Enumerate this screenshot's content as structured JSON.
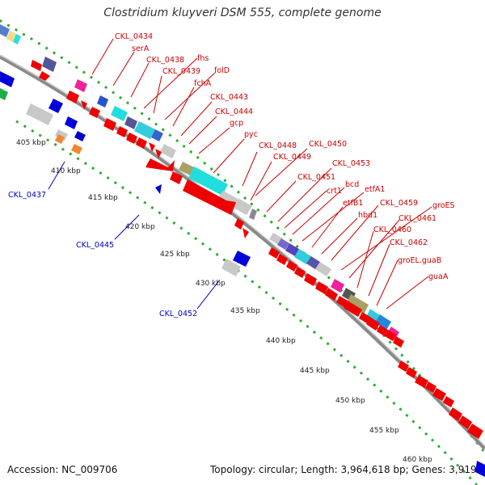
{
  "title": "Clostridium kluyveri DSM 555, complete genome",
  "footer": {
    "accession": "Accession: NC_009706",
    "summary": "Topology: circular; Length: 3,964,618 bp; Genes: 3,919"
  },
  "colors": {
    "forward": "#ee0000",
    "reverse": "#0000dd",
    "backbone": "#888888",
    "ruler": "#33aa33",
    "label_forward": "#cc0000",
    "label_reverse": "#0000cc"
  },
  "ruler_labels": [
    "405 kbp",
    "410 kbp",
    "415 kbp",
    "420 kbp",
    "425 kbp",
    "430 kbp",
    "435 kbp",
    "440 kbp",
    "445 kbp",
    "450 kbp",
    "455 kbp",
    "460 kbp"
  ],
  "forward_labels": [
    "CKL_0434",
    "serA",
    "CKL_0438",
    "fhs",
    "CKL_0439",
    "folD",
    "fchA",
    "CKL_0443",
    "CKL_0444",
    "gcp",
    "pyc",
    "CKL_0448",
    "CKL_0450",
    "CKL_0449",
    "CKL_0453",
    "CKL_0451",
    "crt1",
    "bcd",
    "etfA1",
    "etfB1",
    "hbd1",
    "CKL_0459",
    "groES",
    "CKL_0461",
    "CKL_0460",
    "CKL_0462",
    "groEL.guaB",
    "guaA"
  ],
  "reverse_labels": [
    "CKL_0437",
    "CKL_0445",
    "CKL_0452"
  ]
}
